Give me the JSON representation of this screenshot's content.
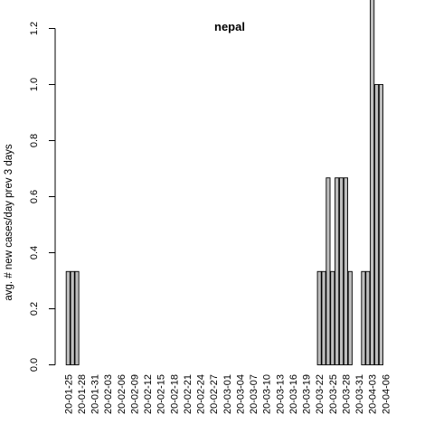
{
  "chart_data": {
    "type": "bar",
    "title": "nepal",
    "xlabel": "",
    "ylabel": "avg. # new cases/day prev  3  days",
    "ylim": [
      0,
      1.4
    ],
    "y_ticks": [
      "0.0",
      "0.2",
      "0.4",
      "0.6",
      "0.8",
      "1.0",
      "1.2"
    ],
    "y_tick_values": [
      0,
      0.2,
      0.4,
      0.6,
      0.8,
      1.0,
      1.2
    ],
    "x_tick_labels": [
      "20-01-25",
      "20-01-28",
      "20-01-31",
      "20-02-03",
      "20-02-06",
      "20-02-09",
      "20-02-12",
      "20-02-15",
      "20-02-18",
      "20-02-21",
      "20-02-24",
      "20-02-27",
      "20-03-01",
      "20-03-04",
      "20-03-07",
      "20-03-10",
      "20-03-13",
      "20-03-16",
      "20-03-19",
      "20-03-22",
      "20-03-25",
      "20-03-28",
      "20-03-31",
      "20-04-03",
      "20-04-06"
    ],
    "x_tick_positions": [
      0,
      3,
      6,
      9,
      12,
      15,
      18,
      21,
      24,
      27,
      30,
      33,
      36,
      39,
      42,
      45,
      48,
      51,
      54,
      57,
      60,
      63,
      66,
      69,
      72
    ],
    "values": [
      0.333,
      0.333,
      0.333,
      0,
      0,
      0,
      0,
      0,
      0,
      0,
      0,
      0,
      0,
      0,
      0,
      0,
      0,
      0,
      0,
      0,
      0,
      0,
      0,
      0,
      0,
      0,
      0,
      0,
      0,
      0,
      0,
      0,
      0,
      0,
      0,
      0,
      0,
      0,
      0,
      0,
      0,
      0,
      0,
      0,
      0,
      0,
      0,
      0,
      0,
      0,
      0,
      0,
      0,
      0,
      0,
      0,
      0,
      0.333,
      0.333,
      0.667,
      0.333,
      0.667,
      0.667,
      0.667,
      0.333,
      0,
      0,
      0.333,
      0.333,
      1.333,
      1,
      1
    ],
    "colors": {
      "bar_fill": "#bebebe",
      "bar_stroke": "#000000",
      "axis": "#000000",
      "background": "#ffffff"
    }
  }
}
